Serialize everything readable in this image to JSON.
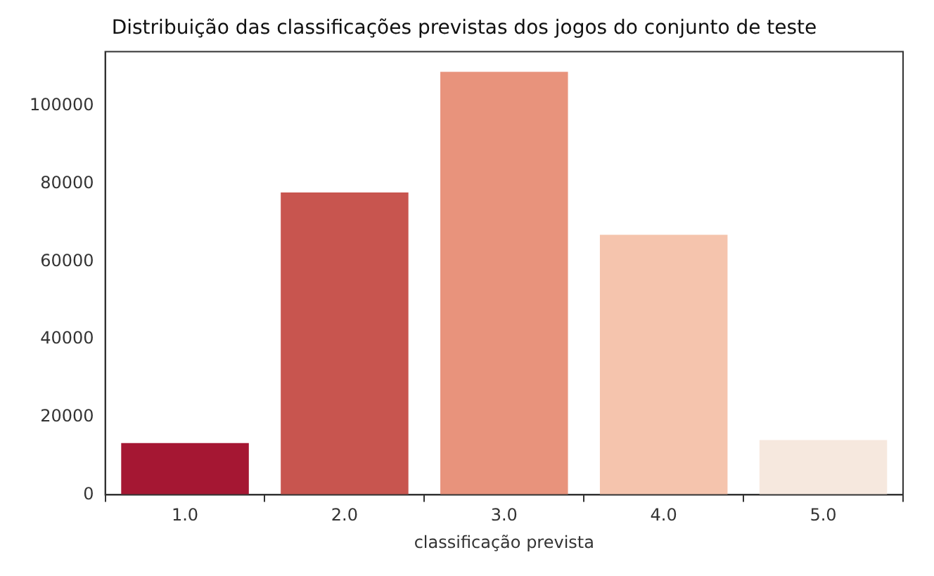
{
  "chart_data": {
    "type": "bar",
    "title": "Distribuição das classificações previstas dos jogos do conjunto de teste",
    "xlabel": "classificação prevista",
    "categories": [
      "1.0",
      "2.0",
      "3.0",
      "4.0",
      "5.0"
    ],
    "values": [
      13300,
      77800,
      108800,
      66900,
      14100
    ],
    "colors": [
      "#a51733",
      "#c8554f",
      "#e8937c",
      "#f5c4ad",
      "#f6e8de"
    ],
    "ylim": [
      0,
      114000
    ],
    "yticks": [
      0,
      20000,
      40000,
      60000,
      80000,
      100000
    ],
    "grid": false,
    "legend": false
  }
}
